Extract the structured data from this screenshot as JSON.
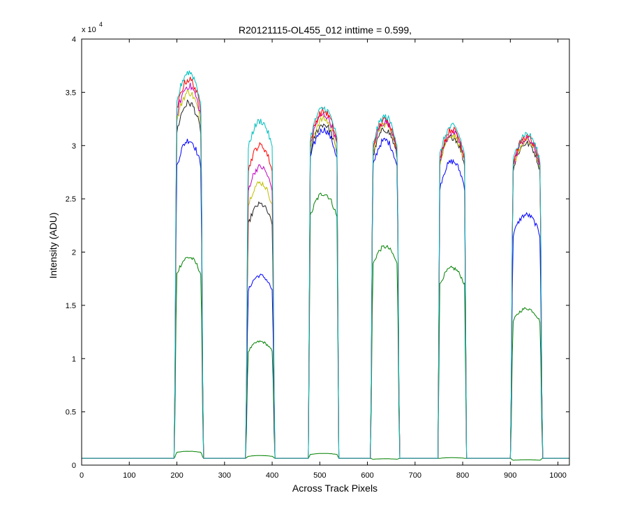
{
  "chart_data": {
    "type": "line",
    "title": "R20121115-OL455_012 inttime = 0.599,",
    "xlabel": "Across Track Pixels",
    "ylabel": "Intensity (ADU)",
    "xlim": [
      0,
      1024
    ],
    "ylim": [
      0,
      40000
    ],
    "x_ticks": [
      0,
      100,
      200,
      300,
      400,
      500,
      600,
      700,
      800,
      900,
      1000
    ],
    "x_tick_labels": [
      "0",
      "100",
      "200",
      "300",
      "400",
      "500",
      "600",
      "700",
      "800",
      "900",
      "1000"
    ],
    "y_ticks": [
      0,
      5000,
      10000,
      15000,
      20000,
      25000,
      30000,
      35000,
      40000
    ],
    "y_tick_labels": [
      "0",
      "0.5",
      "1",
      "1.5",
      "2",
      "2.5",
      "3",
      "3.5",
      "4"
    ],
    "y_multiplier_label": "x 10",
    "y_multiplier_exponent": "4",
    "grid": false,
    "legend": "none",
    "baseline": 650,
    "plateaus": [
      {
        "left": 197,
        "right": 253
      },
      {
        "left": 347,
        "right": 403
      },
      {
        "left": 478,
        "right": 538
      },
      {
        "left": 609,
        "right": 665
      },
      {
        "left": 750,
        "right": 806
      },
      {
        "left": 903,
        "right": 965
      }
    ],
    "series": [
      {
        "color": "#008000",
        "levels": [
          1300,
          900,
          1100,
          600,
          700,
          500
        ]
      },
      {
        "color": "#008000",
        "levels": [
          19500,
          11600,
          25500,
          20500,
          18500,
          14700
        ]
      },
      {
        "color": "#0000ff",
        "levels": [
          30500,
          17800,
          31500,
          30500,
          28500,
          23500
        ]
      },
      {
        "color": "#222222",
        "levels": [
          34000,
          24500,
          32000,
          31500,
          30800,
          30200
        ]
      },
      {
        "color": "#bfbf00",
        "levels": [
          35000,
          26500,
          32500,
          32000,
          31000,
          30400
        ]
      },
      {
        "color": "#bf00bf",
        "levels": [
          35600,
          28000,
          32900,
          32200,
          31200,
          30600
        ]
      },
      {
        "color": "#ff0000",
        "levels": [
          36200,
          30000,
          33200,
          32400,
          31500,
          30800
        ]
      },
      {
        "color": "#00bfbf",
        "levels": [
          36900,
          32300,
          33500,
          32700,
          31800,
          31100
        ]
      }
    ]
  }
}
